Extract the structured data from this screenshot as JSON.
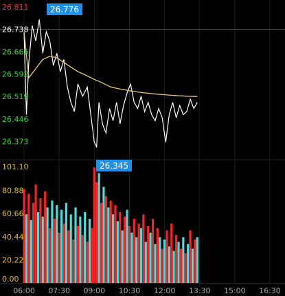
{
  "chart_data": [
    {
      "type": "line",
      "title": "",
      "xlabel": "",
      "ylabel": "",
      "y_ticks": [
        "26.811",
        "26.738",
        "26.665",
        "26.592",
        "26.519",
        "26.446",
        "26.373"
      ],
      "y_tick_colors": [
        "#ff3030",
        "#ffffff",
        "#33dd33",
        "#33dd33",
        "#33dd33",
        "#33dd33",
        "#33dd33"
      ],
      "ylim": [
        26.32,
        26.811
      ],
      "reference_line": 26.738,
      "x_ticks": [
        "06:00",
        "07:30",
        "09:00",
        "10:30",
        "12:00",
        "13:30",
        "15:00",
        "16:30"
      ],
      "x_range_hours": [
        5.5,
        17.0
      ],
      "price_high_label": "26.776",
      "price_low_label": "26.345",
      "series": [
        {
          "color": "#ffffff",
          "x": [
            6.0,
            6.1,
            6.2,
            6.35,
            6.5,
            6.65,
            6.8,
            6.95,
            7.1,
            7.25,
            7.4,
            7.55,
            7.7,
            7.85,
            8.0,
            8.15,
            8.3,
            8.5,
            8.7,
            8.85,
            9.0,
            9.1,
            9.2,
            9.35,
            9.5,
            9.65,
            9.8,
            9.95,
            10.1,
            10.25,
            10.4,
            10.55,
            10.7,
            10.85,
            11.0,
            11.15,
            11.3,
            11.45,
            11.6,
            11.75,
            11.9,
            12.05,
            12.2,
            12.35,
            12.5,
            12.65,
            12.8,
            12.95,
            13.1,
            13.25,
            13.4
          ],
          "values": [
            26.73,
            26.46,
            26.63,
            26.75,
            26.7,
            26.77,
            26.66,
            26.73,
            26.7,
            26.62,
            26.66,
            26.6,
            26.64,
            26.55,
            26.5,
            26.47,
            26.56,
            26.52,
            26.55,
            26.46,
            26.37,
            26.355,
            26.5,
            26.43,
            26.4,
            26.48,
            26.44,
            26.5,
            26.43,
            26.49,
            26.53,
            26.56,
            26.5,
            26.48,
            26.52,
            26.47,
            26.5,
            26.46,
            26.44,
            26.48,
            26.45,
            26.37,
            26.46,
            26.5,
            26.45,
            26.49,
            26.46,
            26.47,
            26.51,
            26.48,
            26.5
          ]
        },
        {
          "color": "#e8c870",
          "x": [
            6.0,
            6.2,
            6.5,
            6.8,
            7.1,
            7.4,
            7.7,
            8.0,
            8.3,
            8.6,
            9.0,
            9.3,
            9.7,
            10.0,
            10.5,
            11.0,
            11.5,
            12.0,
            12.5,
            13.0,
            13.4
          ],
          "values": [
            26.73,
            26.58,
            26.61,
            26.64,
            26.65,
            26.645,
            26.63,
            26.615,
            26.6,
            26.59,
            26.575,
            26.565,
            26.55,
            26.545,
            26.538,
            26.532,
            26.528,
            26.525,
            26.522,
            26.52,
            26.519
          ]
        }
      ]
    },
    {
      "type": "bar",
      "title": "",
      "y_ticks": [
        "101.10",
        "80.88",
        "60.66",
        "40.44",
        "20.22",
        "0.00"
      ],
      "ylim": [
        0,
        101.1
      ],
      "x_range_hours": [
        5.5,
        17.0
      ],
      "bar_colors": [
        "#ff2020",
        "#40e0e0"
      ],
      "x": [
        6.0,
        6.1,
        6.2,
        6.3,
        6.4,
        6.5,
        6.6,
        6.7,
        6.8,
        6.9,
        7.0,
        7.1,
        7.2,
        7.3,
        7.4,
        7.5,
        7.6,
        7.7,
        7.8,
        7.9,
        8.0,
        8.1,
        8.2,
        8.3,
        8.4,
        8.5,
        8.6,
        8.7,
        8.8,
        8.9,
        9.0,
        9.1,
        9.2,
        9.3,
        9.4,
        9.5,
        9.6,
        9.7,
        9.8,
        9.9,
        10.0,
        10.1,
        10.2,
        10.3,
        10.4,
        10.5,
        10.6,
        10.7,
        10.8,
        10.9,
        11.0,
        11.1,
        11.2,
        11.3,
        11.4,
        11.5,
        11.6,
        11.7,
        11.8,
        11.9,
        12.0,
        12.1,
        12.2,
        12.3,
        12.4,
        12.5,
        12.6,
        12.7,
        12.8,
        12.9,
        13.0,
        13.1,
        13.2,
        13.3,
        13.4
      ],
      "values": [
        82,
        60,
        78,
        55,
        70,
        86,
        62,
        74,
        58,
        80,
        66,
        48,
        72,
        56,
        68,
        44,
        64,
        52,
        70,
        46,
        60,
        38,
        66,
        50,
        58,
        42,
        62,
        36,
        56,
        48,
        101,
        88,
        96,
        70,
        84,
        76,
        66,
        72,
        60,
        68,
        54,
        62,
        46,
        58,
        64,
        50,
        44,
        56,
        40,
        52,
        48,
        60,
        36,
        50,
        44,
        56,
        34,
        48,
        40,
        30,
        38,
        46,
        32,
        52,
        28,
        42,
        36,
        30,
        40,
        26,
        34,
        46,
        30,
        38,
        40
      ],
      "up_down": [
        1,
        0,
        1,
        0,
        1,
        1,
        0,
        1,
        0,
        1,
        0,
        1,
        0,
        1,
        0,
        1,
        0,
        1,
        0,
        1,
        0,
        1,
        0,
        1,
        0,
        1,
        0,
        1,
        0,
        1,
        1,
        1,
        0,
        1,
        0,
        1,
        0,
        1,
        0,
        1,
        0,
        1,
        0,
        1,
        0,
        1,
        0,
        1,
        0,
        1,
        0,
        1,
        0,
        1,
        0,
        1,
        0,
        1,
        0,
        1,
        0,
        1,
        0,
        1,
        0,
        1,
        0,
        1,
        0,
        1,
        0,
        1,
        0,
        1,
        0
      ]
    }
  ]
}
